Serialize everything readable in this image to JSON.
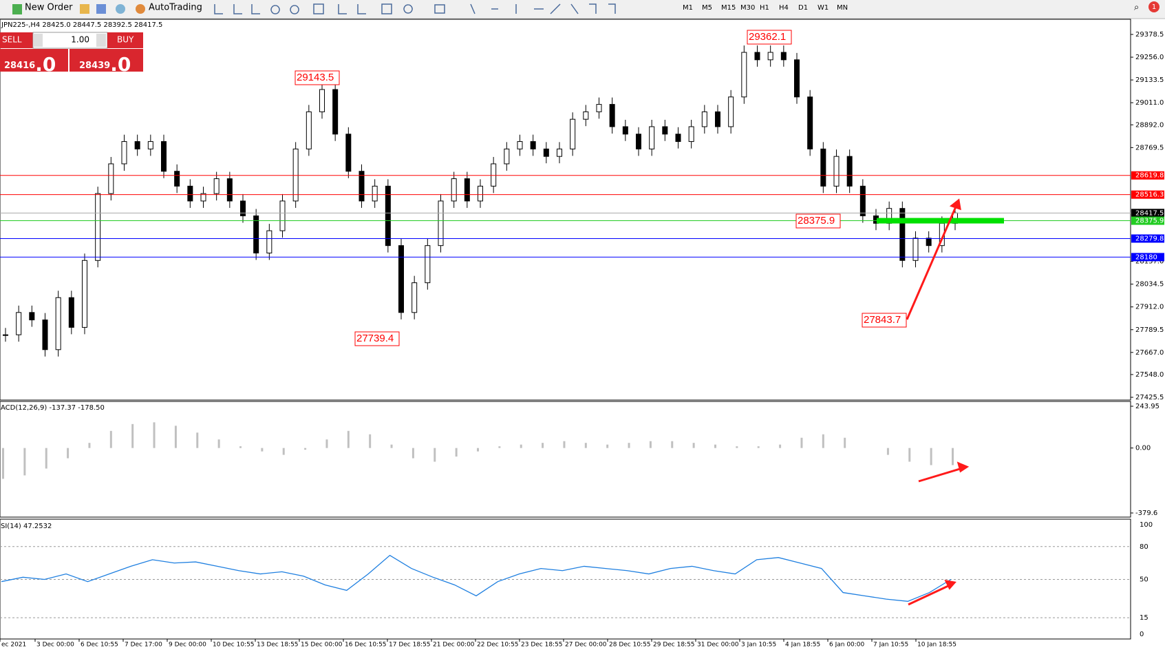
{
  "toolbar": {
    "new_order": "New Order",
    "auto_trading": "AutoTrading",
    "timeframes": [
      "M1",
      "M5",
      "M15",
      "M30",
      "H1",
      "H4",
      "D1",
      "W1",
      "MN"
    ],
    "alerts": "1"
  },
  "chart_header": "JPN225-,H4  28425.0 28447.5 28392.5 28417.5",
  "trade_panel": {
    "sell": "SELL",
    "buy": "BUY",
    "volume": "1.00",
    "bid_small": "28416",
    "bid_large": ".0",
    "ask_small": "28439",
    "ask_large": ".0"
  },
  "main_panel": {
    "ylim": [
      27425.5,
      29378.5
    ],
    "yticks": [
      29378.5,
      {
        "value": 29256.0,
        "label": "29256.0"
      },
      29133.5,
      {
        "value": 29011.0,
        "label": "29011.0"
      },
      {
        "value": 28892.0,
        "label": "28892.0"
      },
      28769.5,
      {
        "value": 28157.0,
        "label": "28157.0"
      },
      28034.5,
      {
        "value": 27912.0,
        "label": "27912.0"
      },
      27789.5,
      {
        "value": 27667.0,
        "label": "27667.0"
      },
      {
        "value": 27548.0,
        "label": "27548.0"
      },
      27425.5
    ],
    "levels": [
      {
        "value": 28619.8,
        "color": "#ff0000"
      },
      {
        "value": 28516.3,
        "color": "#ff0000"
      },
      {
        "value": 28417.5,
        "color": "#000000"
      },
      {
        "value": 28375.9,
        "color": "#22cc22"
      },
      {
        "value": 28279.8,
        "color": "#0000ff"
      },
      {
        "value": 28180.0,
        "color": "#0000ff"
      }
    ],
    "annotations": [
      "29362.1",
      "29143.5",
      "27739.4",
      "28375.9",
      "27843.7"
    ],
    "closes": [
      27762,
      27882,
      27842,
      27682,
      27962,
      27802,
      28162,
      28522,
      28682,
      28802,
      28762,
      28802,
      28642,
      28562,
      28482,
      28522,
      28602,
      28482,
      28402,
      28202,
      28322,
      28482,
      28762,
      28962,
      29082,
      28842,
      28642,
      28482,
      28562,
      28242,
      27882,
      28042,
      28242,
      28482,
      28602,
      28482,
      28562,
      28682,
      28762,
      28802,
      28762,
      28722,
      28762,
      28922,
      28962,
      29002,
      28882,
      28842,
      28762,
      28882,
      28842,
      28802,
      28882,
      28962,
      28882,
      29042,
      29282,
      29242,
      29282,
      29242,
      29042,
      28762,
      28562,
      28722,
      28562,
      28402,
      28362,
      28442,
      28162,
      28282,
      28242,
      28362,
      28417.5
    ]
  },
  "macd_panel": {
    "label": "ACD(12,26,9) -137.37 -178.50",
    "ylim": [
      -379.6,
      243.95
    ],
    "yticks": [
      243.95,
      {
        "value": 0,
        "label": "0.00"
      },
      -379.6
    ],
    "histogram": [
      -180,
      -160,
      -120,
      -60,
      30,
      100,
      140,
      150,
      130,
      90,
      50,
      10,
      -20,
      -40,
      -10,
      50,
      100,
      80,
      20,
      -60,
      -80,
      -50,
      -20,
      10,
      20,
      30,
      40,
      30,
      20,
      30,
      40,
      40,
      30,
      20,
      10,
      10,
      20,
      60,
      80,
      60,
      0,
      -40,
      -80,
      -100,
      -100
    ]
  },
  "rsi_panel": {
    "label": "SI(14) 47.2532",
    "ylim": [
      0,
      100
    ],
    "yticks": [
      100,
      80,
      50,
      15,
      0
    ],
    "levels": [
      80,
      50,
      15
    ],
    "values": [
      48,
      52,
      50,
      55,
      48,
      55,
      62,
      68,
      65,
      66,
      62,
      58,
      55,
      57,
      53,
      45,
      40,
      55,
      72,
      60,
      52,
      45,
      35,
      48,
      55,
      60,
      58,
      62,
      60,
      58,
      55,
      60,
      62,
      58,
      55,
      68,
      70,
      65,
      60,
      38,
      35,
      32,
      30,
      38,
      50
    ]
  },
  "time_axis": [
    "ec 2021",
    "3 Dec 00:00",
    "6 Dec 10:55",
    "7 Dec 17:00",
    "9 Dec 00:00",
    "10 Dec 10:55",
    "13 Dec 18:55",
    "15 Dec 00:00",
    "16 Dec 10:55",
    "17 Dec 18:55",
    "21 Dec 00:00",
    "22 Dec 10:55",
    "23 Dec 18:55",
    "27 Dec 00:00",
    "28 Dec 10:55",
    "29 Dec 18:55",
    "31 Dec 00:00",
    "3 Jan 10:55",
    "4 Jan 18:55",
    "6 Jan 00:00",
    "7 Jan 10:55",
    "10 Jan 18:55"
  ]
}
